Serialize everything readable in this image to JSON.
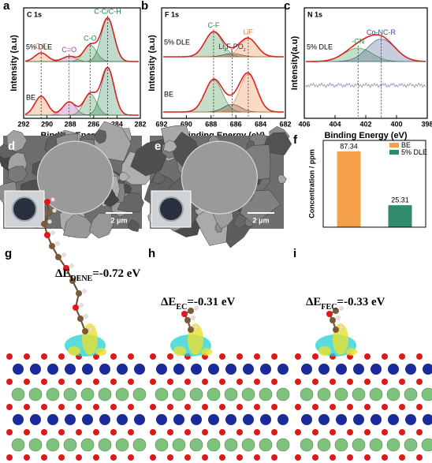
{
  "chart_data": [
    {
      "type": "xps",
      "label": "a",
      "title": "C 1s",
      "xlabel": "Binding Energy (eV)",
      "ylabel": "Intensity (a.u)",
      "xlim": [
        292,
        282
      ],
      "xticks": [
        292,
        290,
        288,
        286,
        284,
        282
      ],
      "series_labels": [
        "5% DLE",
        "BE"
      ],
      "peaks": [
        {
          "label": "C-F",
          "x": 290.5,
          "color": "#e8792f"
        },
        {
          "label": "C=O",
          "x": 288.1,
          "color": "#a0409a"
        },
        {
          "label": "C-O",
          "x": 286.3,
          "color": "#2a8a3a"
        },
        {
          "label": "C-C/C-H",
          "x": 284.8,
          "color": "#1e7a4a"
        }
      ]
    },
    {
      "type": "xps",
      "label": "b",
      "title": "F 1s",
      "xlabel": "Binding Energy (eV)",
      "ylabel": "Intensity (a.u)",
      "xlim": [
        692,
        682
      ],
      "xticks": [
        692,
        690,
        688,
        686,
        684,
        682
      ],
      "series_labels": [
        "5% DLE",
        "BE"
      ],
      "peaks": [
        {
          "label": "C-F",
          "x": 687.8,
          "color": "#2a8a3a"
        },
        {
          "label": [
            "Li",
            "x",
            "F",
            "y",
            "PO",
            "z"
          ],
          "x": 686.3,
          "color": "#333333"
        },
        {
          "label": "LiF",
          "x": 685.0,
          "color": "#e8792f"
        }
      ]
    },
    {
      "type": "xps",
      "label": "c",
      "title": "N 1s",
      "xlabel": "Binding Energy (eV)",
      "ylabel": "Intensity(a.u)",
      "xlim": [
        406,
        398
      ],
      "xticks": [
        406,
        404,
        402,
        400,
        398
      ],
      "series_labels": [
        "5% DLE",
        "BE"
      ],
      "peaks": [
        {
          "label": "-CN",
          "x": 402.5,
          "color": "#2a8a3a"
        },
        {
          "label": "Co-NC-R",
          "x": 401.0,
          "color": "#3a4a8a"
        }
      ]
    },
    {
      "type": "bar",
      "label": "f",
      "ylabel": "Concentration / ppm",
      "ylim": [
        0,
        100
      ],
      "series": [
        {
          "name": "BE",
          "color": "#f4a048",
          "values": [
            87.34
          ]
        },
        {
          "name": "5% DLE",
          "color": "#2e8b6e",
          "values": [
            25.31
          ]
        }
      ]
    }
  ],
  "images": [
    {
      "label": "d",
      "scale_bar": "2 μm"
    },
    {
      "label": "e",
      "scale_bar": "2 μm"
    }
  ],
  "structures": [
    {
      "label": "g",
      "energy": {
        "symbol": "ΔE",
        "subscript": "DENE",
        "value": "=-0.72 eV"
      }
    },
    {
      "label": "h",
      "energy": {
        "symbol": "ΔE",
        "subscript": "EC",
        "value": "=-0.31 eV"
      }
    },
    {
      "label": "i",
      "energy": {
        "symbol": "ΔE",
        "subscript": "FEC",
        "value": "=-0.33 eV"
      }
    }
  ]
}
